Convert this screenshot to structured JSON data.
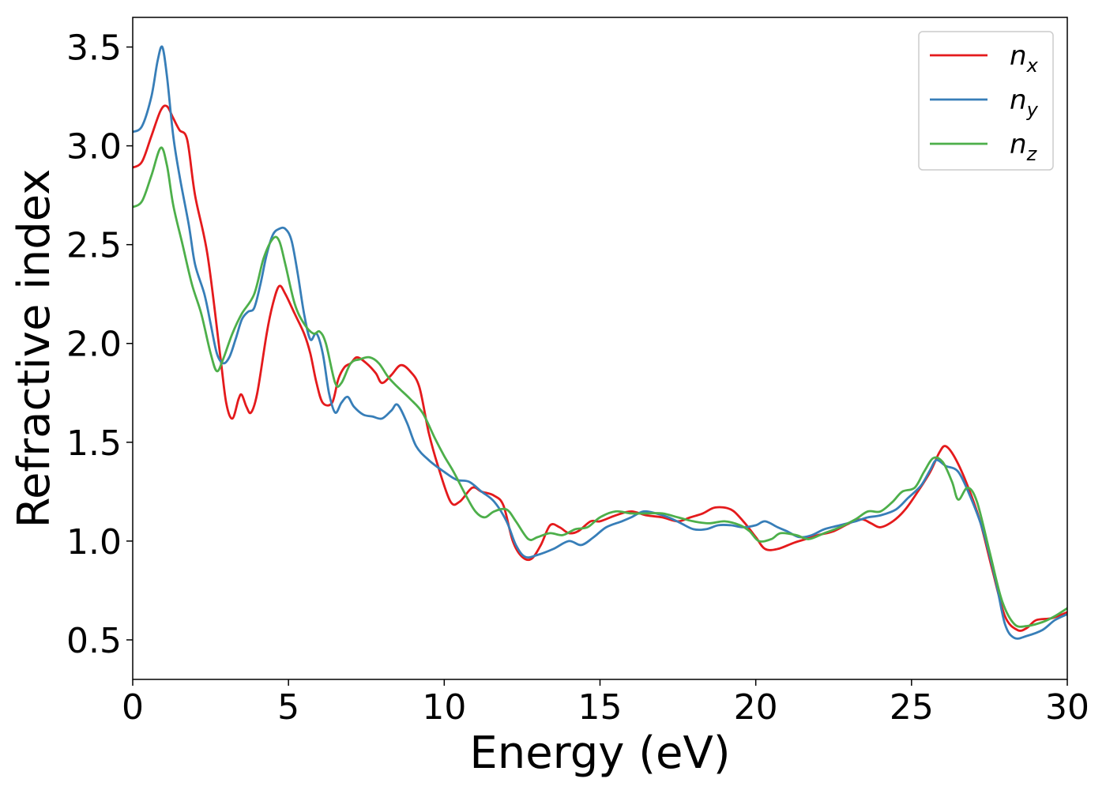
{
  "chart_data": {
    "type": "line",
    "title": "",
    "xlabel": "Energy (eV)",
    "ylabel": "Refractive index",
    "xlim": [
      0,
      30
    ],
    "ylim": [
      0.3,
      3.65
    ],
    "xticks": [
      0,
      5,
      10,
      15,
      20,
      25,
      30
    ],
    "yticks": [
      0.5,
      1.0,
      1.5,
      2.0,
      2.5,
      3.0,
      3.5
    ],
    "xtick_labels": [
      "0",
      "5",
      "10",
      "15",
      "20",
      "25",
      "30"
    ],
    "ytick_labels": [
      "0.5",
      "1.0",
      "1.5",
      "2.0",
      "2.5",
      "3.0",
      "3.5"
    ],
    "grid": false,
    "legend": "top-right",
    "series": [
      {
        "name": "n",
        "subscript": "x",
        "color": "#e41a1c",
        "points": [
          [
            0,
            2.89
          ],
          [
            0.3,
            2.92
          ],
          [
            0.6,
            3.05
          ],
          [
            0.9,
            3.18
          ],
          [
            1.1,
            3.2
          ],
          [
            1.3,
            3.14
          ],
          [
            1.5,
            3.08
          ],
          [
            1.75,
            3.03
          ],
          [
            2.0,
            2.75
          ],
          [
            2.4,
            2.45
          ],
          [
            2.8,
            1.95
          ],
          [
            3.0,
            1.7
          ],
          [
            3.2,
            1.62
          ],
          [
            3.4,
            1.72
          ],
          [
            3.5,
            1.74
          ],
          [
            3.65,
            1.68
          ],
          [
            3.8,
            1.65
          ],
          [
            4.0,
            1.75
          ],
          [
            4.3,
            2.05
          ],
          [
            4.5,
            2.2
          ],
          [
            4.7,
            2.29
          ],
          [
            4.9,
            2.25
          ],
          [
            5.2,
            2.15
          ],
          [
            5.5,
            2.05
          ],
          [
            5.7,
            1.95
          ],
          [
            5.9,
            1.8
          ],
          [
            6.1,
            1.7
          ],
          [
            6.4,
            1.7
          ],
          [
            6.6,
            1.82
          ],
          [
            6.8,
            1.88
          ],
          [
            7.0,
            1.9
          ],
          [
            7.2,
            1.93
          ],
          [
            7.5,
            1.9
          ],
          [
            7.8,
            1.85
          ],
          [
            8.0,
            1.8
          ],
          [
            8.3,
            1.84
          ],
          [
            8.6,
            1.89
          ],
          [
            8.9,
            1.86
          ],
          [
            9.2,
            1.78
          ],
          [
            9.5,
            1.55
          ],
          [
            9.8,
            1.38
          ],
          [
            10.2,
            1.2
          ],
          [
            10.5,
            1.2
          ],
          [
            10.9,
            1.27
          ],
          [
            11.2,
            1.25
          ],
          [
            11.6,
            1.23
          ],
          [
            11.9,
            1.18
          ],
          [
            12.2,
            1.0
          ],
          [
            12.5,
            0.92
          ],
          [
            12.8,
            0.91
          ],
          [
            13.1,
            0.98
          ],
          [
            13.4,
            1.08
          ],
          [
            13.7,
            1.07
          ],
          [
            14.0,
            1.04
          ],
          [
            14.3,
            1.05
          ],
          [
            14.7,
            1.1
          ],
          [
            15.0,
            1.1
          ],
          [
            15.5,
            1.13
          ],
          [
            16.0,
            1.15
          ],
          [
            16.5,
            1.13
          ],
          [
            17.0,
            1.12
          ],
          [
            17.5,
            1.1
          ],
          [
            17.9,
            1.12
          ],
          [
            18.3,
            1.14
          ],
          [
            18.7,
            1.17
          ],
          [
            19.2,
            1.16
          ],
          [
            19.6,
            1.1
          ],
          [
            20.0,
            1.02
          ],
          [
            20.3,
            0.96
          ],
          [
            20.7,
            0.96
          ],
          [
            21.2,
            0.99
          ],
          [
            21.6,
            1.01
          ],
          [
            22.0,
            1.03
          ],
          [
            22.5,
            1.05
          ],
          [
            23.0,
            1.09
          ],
          [
            23.4,
            1.11
          ],
          [
            23.7,
            1.09
          ],
          [
            24.0,
            1.07
          ],
          [
            24.4,
            1.1
          ],
          [
            24.8,
            1.16
          ],
          [
            25.2,
            1.25
          ],
          [
            25.6,
            1.35
          ],
          [
            25.9,
            1.45
          ],
          [
            26.1,
            1.48
          ],
          [
            26.4,
            1.42
          ],
          [
            26.8,
            1.28
          ],
          [
            27.2,
            1.1
          ],
          [
            27.6,
            0.85
          ],
          [
            28.0,
            0.62
          ],
          [
            28.4,
            0.55
          ],
          [
            28.7,
            0.56
          ],
          [
            29.0,
            0.6
          ],
          [
            29.5,
            0.61
          ],
          [
            30.0,
            0.64
          ]
        ]
      },
      {
        "name": "n",
        "subscript": "y",
        "color": "#377eb8",
        "points": [
          [
            0,
            3.07
          ],
          [
            0.3,
            3.1
          ],
          [
            0.6,
            3.25
          ],
          [
            0.8,
            3.43
          ],
          [
            0.95,
            3.5
          ],
          [
            1.1,
            3.35
          ],
          [
            1.3,
            3.05
          ],
          [
            1.5,
            2.85
          ],
          [
            1.8,
            2.6
          ],
          [
            2.0,
            2.4
          ],
          [
            2.3,
            2.25
          ],
          [
            2.5,
            2.1
          ],
          [
            2.7,
            1.95
          ],
          [
            2.9,
            1.9
          ],
          [
            3.1,
            1.93
          ],
          [
            3.3,
            2.02
          ],
          [
            3.5,
            2.12
          ],
          [
            3.7,
            2.16
          ],
          [
            3.9,
            2.18
          ],
          [
            4.1,
            2.3
          ],
          [
            4.3,
            2.45
          ],
          [
            4.5,
            2.55
          ],
          [
            4.7,
            2.58
          ],
          [
            4.9,
            2.58
          ],
          [
            5.1,
            2.52
          ],
          [
            5.3,
            2.35
          ],
          [
            5.5,
            2.15
          ],
          [
            5.7,
            2.02
          ],
          [
            5.9,
            2.05
          ],
          [
            6.1,
            1.95
          ],
          [
            6.3,
            1.75
          ],
          [
            6.5,
            1.65
          ],
          [
            6.7,
            1.7
          ],
          [
            6.9,
            1.73
          ],
          [
            7.1,
            1.68
          ],
          [
            7.4,
            1.64
          ],
          [
            7.7,
            1.63
          ],
          [
            8.0,
            1.62
          ],
          [
            8.3,
            1.66
          ],
          [
            8.5,
            1.69
          ],
          [
            8.8,
            1.6
          ],
          [
            9.1,
            1.48
          ],
          [
            9.5,
            1.41
          ],
          [
            10.0,
            1.35
          ],
          [
            10.4,
            1.31
          ],
          [
            10.8,
            1.3
          ],
          [
            11.2,
            1.25
          ],
          [
            11.6,
            1.2
          ],
          [
            12.0,
            1.1
          ],
          [
            12.3,
            0.98
          ],
          [
            12.6,
            0.92
          ],
          [
            13.0,
            0.93
          ],
          [
            13.5,
            0.96
          ],
          [
            14.0,
            1.0
          ],
          [
            14.4,
            0.98
          ],
          [
            14.8,
            1.02
          ],
          [
            15.2,
            1.07
          ],
          [
            15.7,
            1.1
          ],
          [
            16.0,
            1.12
          ],
          [
            16.4,
            1.15
          ],
          [
            16.8,
            1.14
          ],
          [
            17.2,
            1.12
          ],
          [
            17.6,
            1.09
          ],
          [
            18.0,
            1.06
          ],
          [
            18.4,
            1.06
          ],
          [
            18.8,
            1.08
          ],
          [
            19.2,
            1.08
          ],
          [
            19.6,
            1.07
          ],
          [
            20.0,
            1.08
          ],
          [
            20.3,
            1.1
          ],
          [
            20.7,
            1.07
          ],
          [
            21.0,
            1.05
          ],
          [
            21.4,
            1.02
          ],
          [
            21.8,
            1.03
          ],
          [
            22.2,
            1.06
          ],
          [
            22.7,
            1.08
          ],
          [
            23.2,
            1.1
          ],
          [
            23.6,
            1.12
          ],
          [
            24.0,
            1.13
          ],
          [
            24.5,
            1.16
          ],
          [
            24.9,
            1.22
          ],
          [
            25.3,
            1.28
          ],
          [
            25.6,
            1.36
          ],
          [
            25.8,
            1.41
          ],
          [
            26.1,
            1.38
          ],
          [
            26.5,
            1.35
          ],
          [
            26.9,
            1.22
          ],
          [
            27.3,
            1.05
          ],
          [
            27.7,
            0.8
          ],
          [
            28.0,
            0.58
          ],
          [
            28.3,
            0.51
          ],
          [
            28.7,
            0.52
          ],
          [
            29.2,
            0.55
          ],
          [
            29.6,
            0.6
          ],
          [
            30.0,
            0.63
          ]
        ]
      },
      {
        "name": "n",
        "subscript": "z",
        "color": "#4daf4a",
        "points": [
          [
            0,
            2.69
          ],
          [
            0.3,
            2.72
          ],
          [
            0.6,
            2.85
          ],
          [
            0.9,
            2.99
          ],
          [
            1.1,
            2.9
          ],
          [
            1.3,
            2.7
          ],
          [
            1.6,
            2.5
          ],
          [
            1.9,
            2.3
          ],
          [
            2.2,
            2.15
          ],
          [
            2.5,
            1.95
          ],
          [
            2.7,
            1.86
          ],
          [
            2.9,
            1.92
          ],
          [
            3.2,
            2.05
          ],
          [
            3.5,
            2.15
          ],
          [
            3.9,
            2.25
          ],
          [
            4.2,
            2.43
          ],
          [
            4.5,
            2.53
          ],
          [
            4.7,
            2.52
          ],
          [
            4.9,
            2.4
          ],
          [
            5.2,
            2.2
          ],
          [
            5.5,
            2.1
          ],
          [
            5.8,
            2.05
          ],
          [
            6.0,
            2.06
          ],
          [
            6.2,
            2.0
          ],
          [
            6.5,
            1.8
          ],
          [
            6.7,
            1.8
          ],
          [
            7.0,
            1.9
          ],
          [
            7.3,
            1.92
          ],
          [
            7.6,
            1.93
          ],
          [
            7.9,
            1.9
          ],
          [
            8.2,
            1.83
          ],
          [
            8.5,
            1.78
          ],
          [
            8.9,
            1.72
          ],
          [
            9.3,
            1.65
          ],
          [
            9.7,
            1.52
          ],
          [
            10.0,
            1.43
          ],
          [
            10.3,
            1.35
          ],
          [
            10.7,
            1.23
          ],
          [
            11.0,
            1.15
          ],
          [
            11.3,
            1.12
          ],
          [
            11.6,
            1.15
          ],
          [
            12.0,
            1.16
          ],
          [
            12.3,
            1.1
          ],
          [
            12.7,
            1.01
          ],
          [
            13.0,
            1.02
          ],
          [
            13.4,
            1.04
          ],
          [
            13.8,
            1.03
          ],
          [
            14.2,
            1.06
          ],
          [
            14.6,
            1.07
          ],
          [
            15.0,
            1.12
          ],
          [
            15.5,
            1.15
          ],
          [
            16.0,
            1.14
          ],
          [
            16.5,
            1.14
          ],
          [
            17.0,
            1.14
          ],
          [
            17.5,
            1.12
          ],
          [
            18.0,
            1.1
          ],
          [
            18.5,
            1.09
          ],
          [
            19.0,
            1.1
          ],
          [
            19.5,
            1.08
          ],
          [
            19.8,
            1.05
          ],
          [
            20.1,
            1.0
          ],
          [
            20.5,
            1.01
          ],
          [
            20.8,
            1.04
          ],
          [
            21.3,
            1.03
          ],
          [
            21.7,
            1.01
          ],
          [
            22.2,
            1.04
          ],
          [
            22.7,
            1.07
          ],
          [
            23.2,
            1.11
          ],
          [
            23.6,
            1.15
          ],
          [
            24.0,
            1.15
          ],
          [
            24.4,
            1.2
          ],
          [
            24.7,
            1.25
          ],
          [
            25.1,
            1.27
          ],
          [
            25.4,
            1.35
          ],
          [
            25.7,
            1.42
          ],
          [
            26.0,
            1.4
          ],
          [
            26.3,
            1.3
          ],
          [
            26.5,
            1.21
          ],
          [
            26.8,
            1.27
          ],
          [
            27.1,
            1.2
          ],
          [
            27.5,
            0.95
          ],
          [
            27.9,
            0.7
          ],
          [
            28.3,
            0.58
          ],
          [
            28.7,
            0.57
          ],
          [
            29.2,
            0.59
          ],
          [
            29.6,
            0.62
          ],
          [
            30.0,
            0.66
          ]
        ]
      }
    ]
  }
}
